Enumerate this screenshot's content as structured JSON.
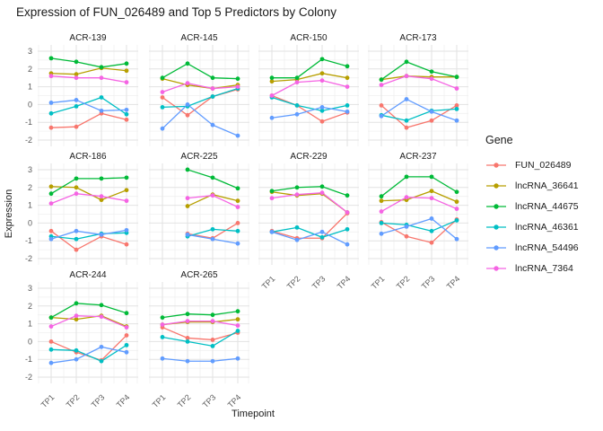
{
  "title": "Expression of FUN_026489 and Top 5 Predictors by Colony",
  "legend": {
    "title": "Gene"
  },
  "chart_data": {
    "type": "line",
    "facet_by": "Colony",
    "x": [
      "TP1",
      "TP2",
      "TP3",
      "TP4"
    ],
    "xlabel": "Timepoint",
    "ylabel": "Expression",
    "ylim": [
      -2.35,
      3.35
    ],
    "yticks": [
      3,
      2,
      1,
      0,
      -1,
      -2
    ],
    "grid": true,
    "legend_position": "right",
    "series": [
      {
        "name": "FUN_026489",
        "color": "#F8766D"
      },
      {
        "name": "lncRNA_36641",
        "color": "#B79F00"
      },
      {
        "name": "lncRNA_44675",
        "color": "#00BA38"
      },
      {
        "name": "lncRNA_46361",
        "color": "#00BFC4"
      },
      {
        "name": "lncRNA_54496",
        "color": "#619CFF"
      },
      {
        "name": "lncRNA_7364",
        "color": "#F564E3"
      }
    ],
    "facets": [
      {
        "name": "ACR-139",
        "values": {
          "FUN_026489": [
            -1.3,
            -1.25,
            -0.5,
            -0.85
          ],
          "lncRNA_36641": [
            1.75,
            1.7,
            2.05,
            1.9
          ],
          "lncRNA_44675": [
            2.6,
            2.4,
            2.1,
            2.3
          ],
          "lncRNA_46361": [
            -0.5,
            -0.1,
            0.4,
            -0.55
          ],
          "lncRNA_54496": [
            0.1,
            0.25,
            -0.35,
            -0.3
          ],
          "lncRNA_7364": [
            1.6,
            1.5,
            1.5,
            1.25
          ]
        }
      },
      {
        "name": "ACR-145",
        "values": {
          "FUN_026489": [
            0.4,
            -0.6,
            0.45,
            0.85
          ],
          "lncRNA_36641": [
            1.45,
            1.1,
            0.9,
            1.1
          ],
          "lncRNA_44675": [
            1.5,
            2.3,
            1.5,
            1.45
          ],
          "lncRNA_46361": [
            -0.15,
            -0.1,
            0.45,
            0.9
          ],
          "lncRNA_54496": [
            -1.35,
            0.0,
            -1.15,
            -1.75
          ],
          "lncRNA_7364": [
            0.7,
            1.2,
            0.9,
            1.0
          ]
        }
      },
      {
        "name": "ACR-150",
        "values": {
          "FUN_026489": [
            0.5,
            -0.05,
            -0.95,
            -0.45
          ],
          "lncRNA_36641": [
            1.3,
            1.4,
            1.75,
            1.5
          ],
          "lncRNA_44675": [
            1.5,
            1.5,
            2.55,
            2.15
          ],
          "lncRNA_46361": [
            0.4,
            -0.05,
            -0.35,
            -0.05
          ],
          "lncRNA_54496": [
            -0.75,
            -0.55,
            -0.15,
            -0.4
          ],
          "lncRNA_7364": [
            0.5,
            1.25,
            1.35,
            1.0
          ]
        }
      },
      {
        "name": "ACR-173",
        "values": {
          "FUN_026489": [
            -0.05,
            -1.3,
            -0.9,
            -0.05
          ],
          "lncRNA_36641": [
            1.4,
            1.6,
            1.55,
            1.55
          ],
          "lncRNA_44675": [
            1.4,
            2.4,
            1.85,
            1.55
          ],
          "lncRNA_46361": [
            -0.6,
            -0.9,
            -0.35,
            -0.25
          ],
          "lncRNA_54496": [
            -0.65,
            0.3,
            -0.4,
            -0.9
          ],
          "lncRNA_7364": [
            1.1,
            1.6,
            1.45,
            0.9
          ]
        }
      },
      {
        "name": "ACR-186",
        "values": {
          "FUN_026489": [
            -0.45,
            -1.5,
            -0.75,
            -1.2
          ],
          "lncRNA_36641": [
            2.05,
            2.0,
            1.3,
            1.85
          ],
          "lncRNA_44675": [
            1.65,
            2.5,
            2.5,
            2.55
          ],
          "lncRNA_46361": [
            -0.75,
            -0.9,
            -0.6,
            -0.55
          ],
          "lncRNA_54496": [
            -0.9,
            -0.45,
            -0.65,
            -0.4
          ],
          "lncRNA_7364": [
            1.1,
            1.65,
            1.5,
            1.25
          ]
        }
      },
      {
        "name": "ACR-225",
        "values": {
          "FUN_026489": [
            null,
            -0.6,
            -0.85,
            0.0
          ],
          "lncRNA_36641": [
            null,
            0.95,
            1.6,
            1.25
          ],
          "lncRNA_44675": [
            null,
            3.0,
            2.55,
            1.95
          ],
          "lncRNA_46361": [
            null,
            -0.75,
            -0.35,
            -0.45
          ],
          "lncRNA_54496": [
            null,
            -0.65,
            -0.9,
            -1.15
          ],
          "lncRNA_7364": [
            null,
            1.4,
            1.55,
            0.9
          ]
        }
      },
      {
        "name": "ACR-229",
        "values": {
          "FUN_026489": [
            -0.45,
            -0.85,
            -0.85,
            0.55
          ],
          "lncRNA_36641": [
            1.75,
            1.55,
            1.65,
            0.6
          ],
          "lncRNA_44675": [
            1.8,
            2.0,
            2.05,
            1.55
          ],
          "lncRNA_46361": [
            -0.5,
            -0.25,
            -0.8,
            -0.35
          ],
          "lncRNA_54496": [
            -0.5,
            -0.95,
            -0.5,
            -1.2
          ],
          "lncRNA_7364": [
            1.4,
            1.6,
            1.7,
            0.6
          ]
        }
      },
      {
        "name": "ACR-237",
        "values": {
          "FUN_026489": [
            0.05,
            -0.75,
            -1.1,
            0.2
          ],
          "lncRNA_36641": [
            1.25,
            1.3,
            1.8,
            1.2
          ],
          "lncRNA_44675": [
            1.5,
            2.6,
            2.6,
            1.75
          ],
          "lncRNA_46361": [
            0.0,
            -0.1,
            -0.45,
            0.15
          ],
          "lncRNA_54496": [
            -0.6,
            -0.2,
            0.25,
            -0.9
          ],
          "lncRNA_7364": [
            0.65,
            1.45,
            1.4,
            0.8
          ]
        }
      },
      {
        "name": "ACR-244",
        "values": {
          "FUN_026489": [
            0.0,
            -0.6,
            -1.05,
            0.35
          ],
          "lncRNA_36641": [
            1.35,
            1.25,
            1.45,
            0.85
          ],
          "lncRNA_44675": [
            1.35,
            2.15,
            2.05,
            1.6
          ],
          "lncRNA_46361": [
            -0.45,
            -0.5,
            -1.1,
            -0.2
          ],
          "lncRNA_54496": [
            -1.2,
            -1.0,
            -0.3,
            -0.6
          ],
          "lncRNA_7364": [
            0.85,
            1.45,
            1.4,
            0.8
          ]
        }
      },
      {
        "name": "ACR-265",
        "values": {
          "FUN_026489": [
            0.8,
            0.2,
            0.1,
            0.5
          ],
          "lncRNA_36641": [
            0.95,
            1.1,
            1.1,
            1.25
          ],
          "lncRNA_44675": [
            1.35,
            1.55,
            1.5,
            1.7
          ],
          "lncRNA_46361": [
            0.25,
            0.0,
            -0.25,
            0.6
          ],
          "lncRNA_54496": [
            -0.95,
            -1.1,
            -1.1,
            -0.95
          ],
          "lncRNA_7364": [
            0.95,
            1.15,
            1.15,
            0.9
          ]
        }
      }
    ],
    "style": {
      "grid_major_color": "#E2E2E2",
      "grid_minor_color": "#F0F0F0",
      "tick_text_color": "#5a5a5a",
      "strip_text_color": "#1a1a1a",
      "axis_title_color": "#1a1a1a"
    }
  }
}
